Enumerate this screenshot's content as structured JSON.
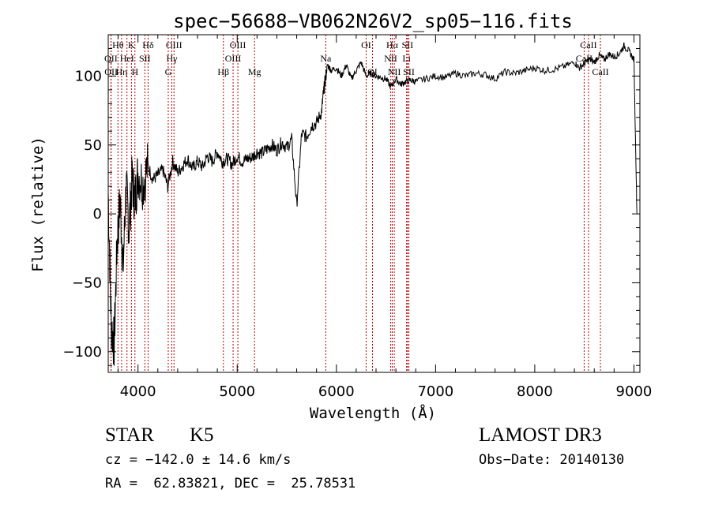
{
  "chart_data": {
    "type": "line",
    "title": "spec−56688−VB062N26V2_sp05−116.fits",
    "xlabel": "Wavelength (Å)",
    "ylabel": "Flux (relative)",
    "xlim": [
      3700,
      9060
    ],
    "ylim": [
      -115,
      130
    ],
    "xticks": [
      4000,
      5000,
      6000,
      7000,
      8000,
      9000
    ],
    "yticks": [
      -100,
      -50,
      0,
      50,
      100
    ],
    "tick_labels_x": [
      "4000",
      "5000",
      "6000",
      "7000",
      "8000",
      "9000"
    ],
    "tick_labels_y": [
      "−100",
      "−50",
      "0",
      "50",
      "100"
    ],
    "grid": false,
    "series": [
      {
        "name": "spectrum",
        "color": "#000000",
        "x": [
          3700,
          3730,
          3760,
          3790,
          3820,
          3850,
          3880,
          3910,
          3940,
          3970,
          4000,
          4050,
          4100,
          4150,
          4200,
          4250,
          4300,
          4350,
          4400,
          4450,
          4500,
          4550,
          4600,
          4650,
          4700,
          4750,
          4800,
          4850,
          4900,
          4950,
          5000,
          5050,
          5100,
          5150,
          5200,
          5250,
          5300,
          5350,
          5400,
          5450,
          5500,
          5550,
          5600,
          5650,
          5700,
          5750,
          5800,
          5850,
          5870,
          5890,
          5910,
          5950,
          6000,
          6050,
          6100,
          6150,
          6200,
          6250,
          6300,
          6350,
          6400,
          6450,
          6500,
          6550,
          6600,
          6650,
          6700,
          6750,
          6800,
          6900,
          7000,
          7100,
          7200,
          7300,
          7400,
          7500,
          7600,
          7700,
          7800,
          7900,
          8000,
          8100,
          8200,
          8300,
          8400,
          8450,
          8500,
          8550,
          8600,
          8650,
          8700,
          8750,
          8800,
          8850,
          8900,
          8950,
          9000,
          9030
        ],
        "y": [
          15,
          -80,
          -95,
          -20,
          10,
          -40,
          20,
          -10,
          25,
          10,
          30,
          22,
          35,
          25,
          28,
          32,
          20,
          38,
          30,
          35,
          40,
          33,
          38,
          34,
          42,
          38,
          45,
          38,
          40,
          36,
          42,
          38,
          40,
          41,
          45,
          44,
          47,
          50,
          46,
          52,
          48,
          54,
          6,
          58,
          56,
          64,
          66,
          74,
          88,
          98,
          108,
          104,
          106,
          100,
          108,
          98,
          104,
          110,
          100,
          102,
          100,
          99,
          98,
          92,
          98,
          94,
          96,
          97,
          96,
          98,
          100,
          99,
          102,
          100,
          102,
          101,
          98,
          103,
          102,
          104,
          106,
          104,
          105,
          107,
          110,
          106,
          109,
          112,
          110,
          115,
          112,
          116,
          114,
          116,
          122,
          118,
          112,
          0
        ]
      }
    ],
    "line_markers": [
      {
        "label": "Hθ",
        "x": 3798,
        "row": 0
      },
      {
        "label": "OII",
        "x": 3727,
        "row": 1
      },
      {
        "label": "OII",
        "x": 3729,
        "row": 2
      },
      {
        "label": "Hη",
        "x": 3835,
        "row": 2
      },
      {
        "label": "HeI",
        "x": 3889,
        "row": 1
      },
      {
        "label": "K",
        "x": 3934,
        "row": 0
      },
      {
        "label": "H",
        "x": 3969,
        "row": 2
      },
      {
        "label": "SII",
        "x": 4069,
        "row": 1
      },
      {
        "label": "Hδ",
        "x": 4102,
        "row": 0
      },
      {
        "label": "OIII",
        "x": 4363,
        "row": 0
      },
      {
        "label": "Hγ",
        "x": 4341,
        "row": 1
      },
      {
        "label": "G",
        "x": 4305,
        "row": 2
      },
      {
        "label": "Hβ",
        "x": 4861,
        "row": 2
      },
      {
        "label": "OIII",
        "x": 5007,
        "row": 0
      },
      {
        "label": "OIII",
        "x": 4959,
        "row": 1
      },
      {
        "label": "Mg",
        "x": 5175,
        "row": 2
      },
      {
        "label": "Na",
        "x": 5893,
        "row": 1
      },
      {
        "label": "OI",
        "x": 6300,
        "row": 0
      },
      {
        "label": "OI",
        "x": 6364,
        "row": 2
      },
      {
        "label": "Hα",
        "x": 6563,
        "row": 0
      },
      {
        "label": "NII",
        "x": 6548,
        "row": 1
      },
      {
        "label": "NII",
        "x": 6584,
        "row": 2
      },
      {
        "label": "SII",
        "x": 6717,
        "row": 0
      },
      {
        "label": "Li",
        "x": 6708,
        "row": 1
      },
      {
        "label": "SII",
        "x": 6731,
        "row": 2
      },
      {
        "label": "CaII",
        "x": 8542,
        "row": 0
      },
      {
        "label": "CaII",
        "x": 8498,
        "row": 1
      },
      {
        "label": "CaII",
        "x": 8662,
        "row": 2
      }
    ],
    "marker_color": "#b40000"
  },
  "info": {
    "object_type": "STAR",
    "subclass": "K5",
    "cz": "cz = −142.0 ± 14.6 km/s",
    "coords": "RA =  62.83821, DEC =  25.78531",
    "survey": "LAMOST DR3",
    "obs_date": "Obs−Date: 20140130"
  }
}
